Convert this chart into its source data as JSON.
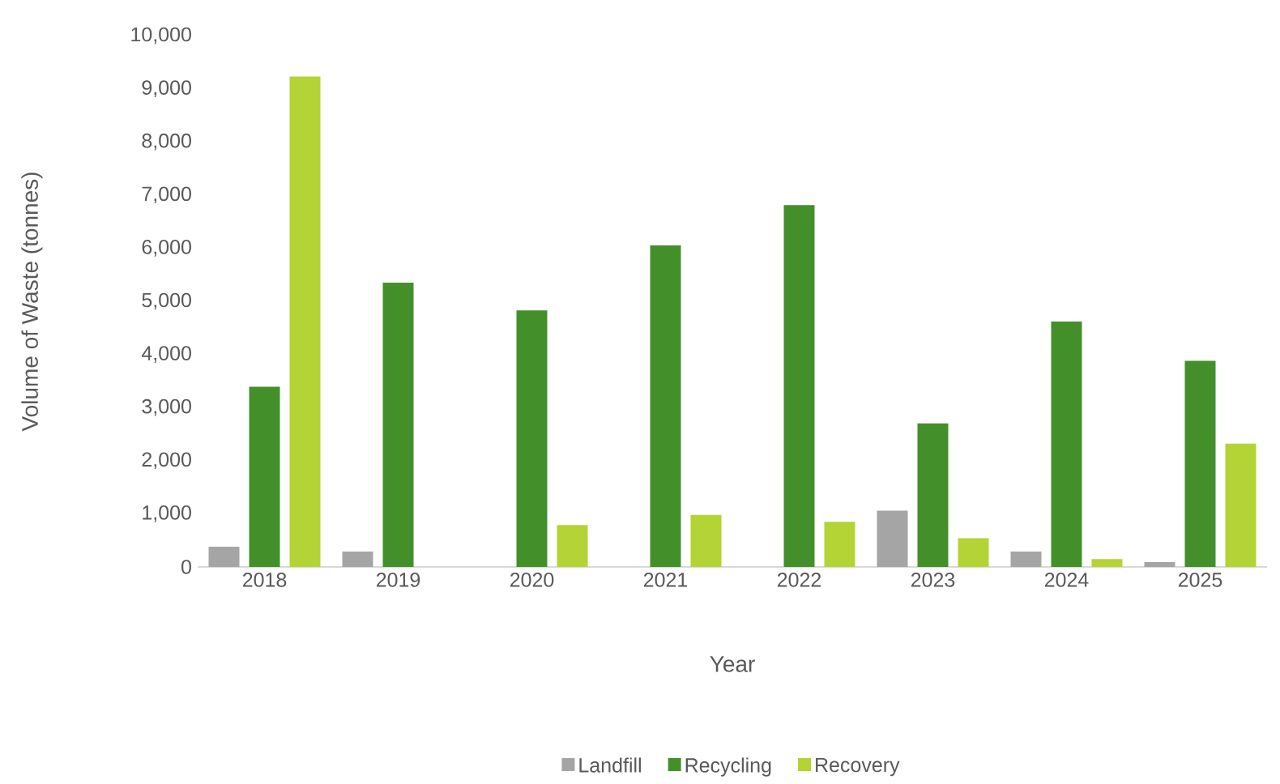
{
  "chart_data": {
    "type": "bar",
    "xlabel": "Year",
    "ylabel": "Volume of Waste (tonnes)",
    "categories": [
      "2018",
      "2019",
      "2020",
      "2021",
      "2022",
      "2023",
      "2024",
      "2025"
    ],
    "series": [
      {
        "name": "Landfill",
        "color": "#a5a5a5",
        "values": [
          380,
          290,
          0,
          0,
          0,
          1060,
          290,
          90
        ]
      },
      {
        "name": "Recycling",
        "color": "#43902a",
        "values": [
          3390,
          5350,
          4830,
          6050,
          6810,
          2700,
          4620,
          3880
        ]
      },
      {
        "name": "Recovery",
        "color": "#b4d334",
        "values": [
          9230,
          0,
          790,
          980,
          850,
          540,
          150,
          2320
        ]
      }
    ],
    "ylim": [
      0,
      10000
    ],
    "yticks": [
      0,
      {
        "value": 1000,
        "label": "1,000"
      },
      {
        "value": 2000,
        "label": "2,000"
      },
      {
        "value": 3000,
        "label": "3,000"
      },
      {
        "value": 4000,
        "label": "4,000"
      },
      {
        "value": 5000,
        "label": "5,000"
      },
      {
        "value": 6000,
        "label": "6,000"
      },
      {
        "value": 7000,
        "label": "7,000"
      },
      {
        "value": 8000,
        "label": "8,000"
      },
      {
        "value": 9000,
        "label": "9,000"
      },
      {
        "value": 10000,
        "label": "10,000"
      }
    ],
    "grid": false,
    "legend": "bottom"
  }
}
